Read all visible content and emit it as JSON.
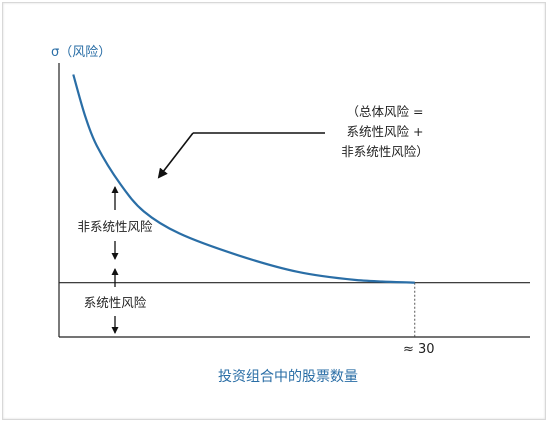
{
  "chart_data": {
    "type": "line",
    "ylabel": "σ（风险）",
    "xlabel": "投资组合中的股票数量",
    "x_tick": "≈ 30",
    "annotation_lines": [
      "（总体风险 =",
      "系统性风险 +",
      "非系统性风险）"
    ],
    "region_labels": {
      "unsystematic": "非系统性风险",
      "systematic": "系统性风险"
    },
    "series": [
      {
        "values": [
          {
            "x": 1,
            "y": 9.6
          },
          {
            "x": 2,
            "y": 8.1
          },
          {
            "x": 3,
            "y": 7.0
          },
          {
            "x": 5,
            "y": 5.6
          },
          {
            "x": 7,
            "y": 4.6
          },
          {
            "x": 10,
            "y": 3.8
          },
          {
            "x": 15,
            "y": 3.0
          },
          {
            "x": 20,
            "y": 2.4
          },
          {
            "x": 25,
            "y": 2.1
          },
          {
            "x": 30,
            "y": 2.0
          }
        ]
      }
    ],
    "systematic_level": 2.0,
    "xlim": [
      0,
      40
    ],
    "ylim": [
      0,
      10
    ],
    "colors": {
      "curve": "#2a6ea6",
      "axis": "#222222",
      "label_blue": "#2a6ea6"
    }
  }
}
